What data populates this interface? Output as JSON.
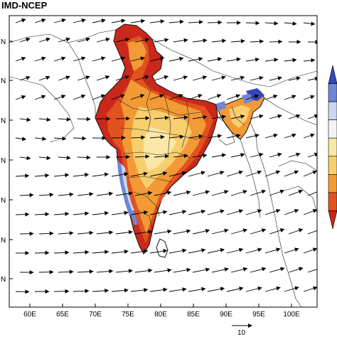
{
  "figure": {
    "title": "IMD-NCEP",
    "x_tick_labels": [
      "60E",
      "65E",
      "70E",
      "75E",
      "80E",
      "85E",
      "90E",
      "95E",
      "100E"
    ],
    "y_tick_labels": [
      "N",
      "N",
      "N",
      "N",
      "N",
      "N",
      "N"
    ],
    "reference_vector_label": "10",
    "colors": {
      "background": "#ffffff",
      "land_warm_dark": "#c9281b",
      "land_warm": "#e2521f",
      "land_orange": "#f29a35",
      "land_light": "#f8cf6f",
      "land_pale": "#fbe7a6",
      "cool_light": "#c9d6ef",
      "cool": "#6f86d4",
      "cool_dark": "#3547b8"
    },
    "colorbar": {
      "swatches": [
        "#3547b8",
        "#6f86d4",
        "#c9d6ef",
        "#f4f4f4",
        "#fbe7a6",
        "#f8cf6f",
        "#f29a35",
        "#e2521f",
        "#c9281b"
      ]
    }
  }
}
